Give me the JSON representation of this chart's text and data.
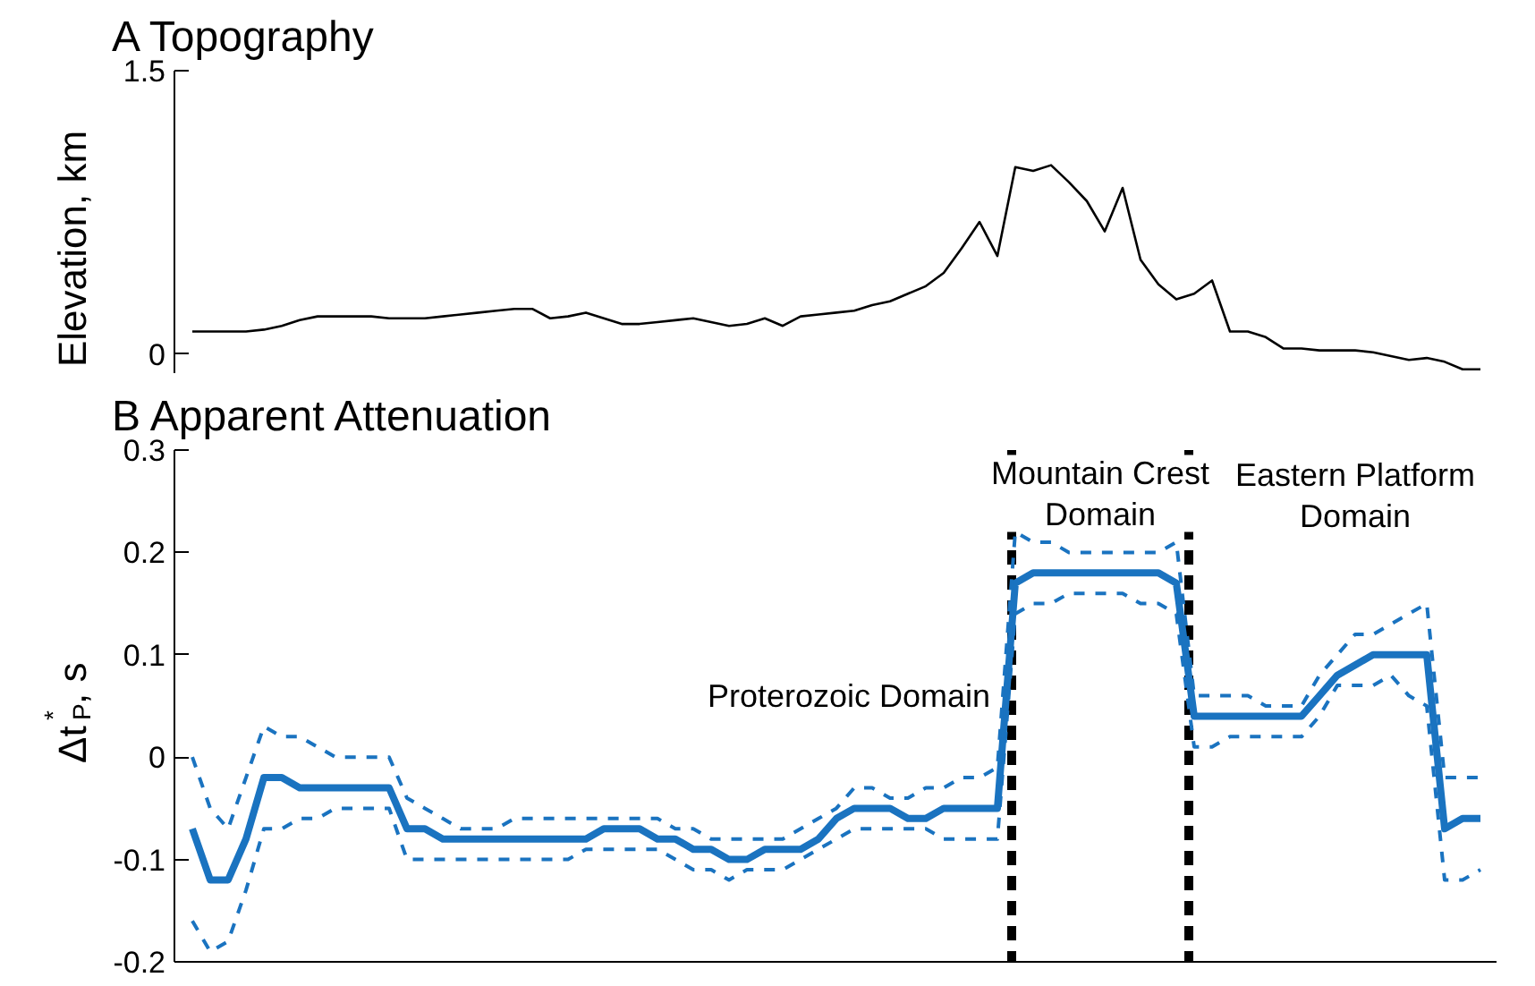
{
  "chart_data": [
    {
      "type": "line",
      "title": "A Topography",
      "ylabel": "Elevation, km",
      "categories": [
        null,
        null,
        null,
        null,
        null,
        null,
        null,
        null,
        null,
        null,
        null,
        null,
        null,
        null,
        null,
        null,
        null,
        null,
        null,
        null,
        null,
        null,
        null,
        null,
        null,
        null,
        null,
        null,
        null,
        null,
        null,
        null,
        null,
        null,
        null,
        null,
        null,
        null,
        null,
        null,
        null,
        null,
        null,
        null,
        null,
        null,
        null,
        null,
        null,
        null,
        null,
        null,
        null,
        null,
        null,
        null,
        null,
        null,
        null,
        null,
        null,
        null,
        null,
        null,
        null,
        null,
        null,
        null,
        null,
        null,
        null,
        null,
        null
      ],
      "ylim": [
        -0.1,
        1.5
      ],
      "yticks": [
        0,
        1.5
      ],
      "tick_labels": "y",
      "grid": false,
      "series": [
        {
          "color": "#000000",
          "line_style": "solid",
          "values": [
            0.12,
            0.12,
            0.12,
            0.12,
            0.13,
            0.15,
            0.18,
            0.2,
            0.2,
            0.2,
            0.2,
            0.19,
            0.19,
            0.19,
            0.2,
            0.21,
            0.22,
            0.23,
            0.24,
            0.24,
            0.19,
            0.2,
            0.22,
            0.19,
            0.16,
            0.16,
            0.17,
            0.18,
            0.19,
            0.17,
            0.15,
            0.16,
            0.19,
            0.15,
            0.2,
            0.21,
            0.22,
            0.23,
            0.26,
            0.28,
            0.32,
            0.36,
            0.43,
            0.56,
            0.7,
            0.52,
            0.99,
            0.97,
            1.0,
            0.91,
            0.81,
            0.65,
            0.88,
            0.5,
            0.37,
            0.29,
            0.32,
            0.39,
            0.12,
            0.12,
            0.09,
            0.03,
            0.03,
            0.02,
            0.02,
            0.02,
            0.01,
            -0.01,
            -0.03,
            -0.02,
            -0.04,
            -0.08,
            -0.08
          ]
        }
      ]
    },
    {
      "type": "line",
      "title": "B Apparent Attenuation",
      "ylabel": "Δt$^{*}$$_{P}$, s",
      "categories": [
        null,
        null,
        null,
        null,
        null,
        null,
        null,
        null,
        null,
        null,
        null,
        null,
        null,
        null,
        null,
        null,
        null,
        null,
        null,
        null,
        null,
        null,
        null,
        null,
        null,
        null,
        null,
        null,
        null,
        null,
        null,
        null,
        null,
        null,
        null,
        null,
        null,
        null,
        null,
        null,
        null,
        null,
        null,
        null,
        null,
        null,
        null,
        null,
        null,
        null,
        null,
        null,
        null,
        null,
        null,
        null,
        null,
        null,
        null,
        null,
        null,
        null,
        null,
        null,
        null,
        null,
        null,
        null,
        null,
        null,
        null,
        null,
        null
      ],
      "ylim": [
        -0.2,
        0.3
      ],
      "yticks": [
        -0.2,
        -0.1,
        0,
        0.1,
        0.2,
        0.3
      ],
      "tick_labels": "y",
      "grid": false,
      "series": [
        {
          "color": "#1a73c0",
          "line_style": "solid",
          "values": [
            -0.07,
            -0.12,
            -0.12,
            -0.08,
            -0.02,
            -0.02,
            -0.03,
            -0.03,
            -0.03,
            -0.03,
            -0.03,
            -0.03,
            -0.07,
            -0.07,
            -0.08,
            -0.08,
            -0.08,
            -0.08,
            -0.08,
            -0.08,
            -0.08,
            -0.08,
            -0.08,
            -0.07,
            -0.07,
            -0.07,
            -0.08,
            -0.08,
            -0.09,
            -0.09,
            -0.1,
            -0.1,
            -0.09,
            -0.09,
            -0.09,
            -0.08,
            -0.06,
            -0.05,
            -0.05,
            -0.05,
            -0.06,
            -0.06,
            -0.05,
            -0.05,
            -0.05,
            -0.05,
            0.17,
            0.18,
            0.18,
            0.18,
            0.18,
            0.18,
            0.18,
            0.18,
            0.18,
            0.17,
            0.04,
            0.04,
            0.04,
            0.04,
            0.04,
            0.04,
            0.04,
            0.06,
            0.08,
            0.09,
            0.1,
            0.1,
            0.1,
            0.1,
            -0.07,
            -0.06,
            -0.06
          ]
        },
        {
          "color": "#1a73c0",
          "line_style": "dashed",
          "values": [
            0.0,
            -0.05,
            -0.07,
            -0.02,
            0.03,
            0.02,
            0.02,
            0.01,
            0.0,
            0.0,
            0.0,
            0.0,
            -0.04,
            -0.05,
            -0.06,
            -0.07,
            -0.07,
            -0.07,
            -0.06,
            -0.06,
            -0.06,
            -0.06,
            -0.06,
            -0.06,
            -0.06,
            -0.06,
            -0.06,
            -0.07,
            -0.07,
            -0.08,
            -0.08,
            -0.08,
            -0.08,
            -0.08,
            -0.07,
            -0.06,
            -0.05,
            -0.03,
            -0.03,
            -0.04,
            -0.04,
            -0.03,
            -0.03,
            -0.02,
            -0.02,
            -0.01,
            0.22,
            0.21,
            0.21,
            0.2,
            0.2,
            0.2,
            0.2,
            0.2,
            0.2,
            0.21,
            0.06,
            0.06,
            0.06,
            0.06,
            0.05,
            0.05,
            0.05,
            0.08,
            0.1,
            0.12,
            0.12,
            0.13,
            0.14,
            0.15,
            -0.02,
            -0.02,
            -0.02
          ]
        },
        {
          "color": "#1a73c0",
          "line_style": "dashed",
          "values": [
            -0.16,
            -0.19,
            -0.18,
            -0.13,
            -0.07,
            -0.07,
            -0.06,
            -0.06,
            -0.05,
            -0.05,
            -0.05,
            -0.05,
            -0.1,
            -0.1,
            -0.1,
            -0.1,
            -0.1,
            -0.1,
            -0.1,
            -0.1,
            -0.1,
            -0.1,
            -0.09,
            -0.09,
            -0.09,
            -0.09,
            -0.09,
            -0.1,
            -0.11,
            -0.11,
            -0.12,
            -0.11,
            -0.11,
            -0.11,
            -0.1,
            -0.09,
            -0.08,
            -0.07,
            -0.07,
            -0.07,
            -0.07,
            -0.07,
            -0.08,
            -0.08,
            -0.08,
            -0.08,
            0.14,
            0.15,
            0.15,
            0.16,
            0.16,
            0.16,
            0.16,
            0.15,
            0.15,
            0.14,
            0.01,
            0.01,
            0.02,
            0.02,
            0.02,
            0.02,
            0.02,
            0.04,
            0.07,
            0.07,
            0.07,
            0.08,
            0.06,
            0.05,
            -0.12,
            -0.12,
            -0.11
          ]
        }
      ],
      "annotations": [
        "Proterozoic Domain",
        "Mountain Crest\nDomain",
        "Eastern Platform\nDomain"
      ]
    }
  ]
}
